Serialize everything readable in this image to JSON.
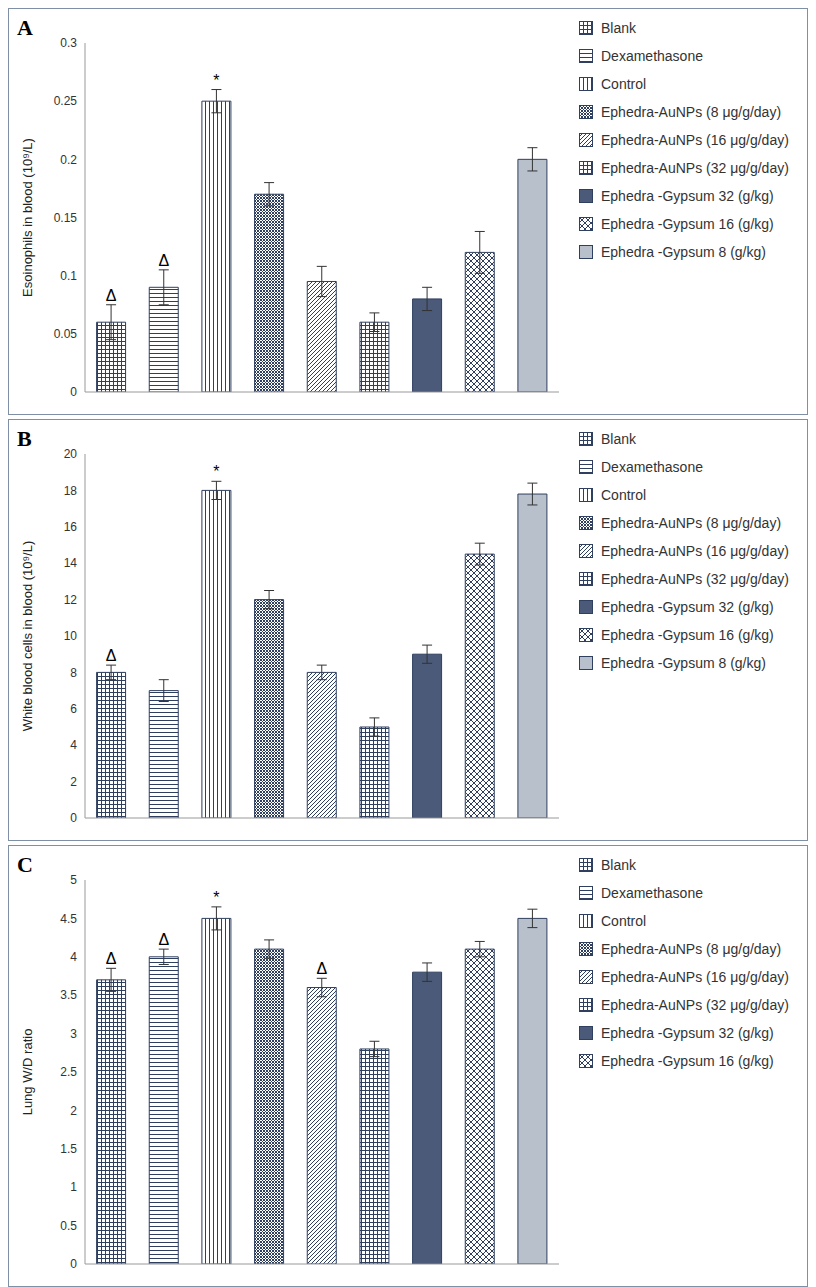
{
  "chart_data": [
    {
      "type": "bar",
      "title": "A",
      "y_label": "Esoinophils in blood (10⁹/L)",
      "categories": [
        "Blank",
        "Dexamethasone",
        "Control",
        "Ephedra-AuNPs (8 μg/g/day)",
        "Ephedra-AuNPs (16 μg/g/day)",
        "Ephedra-AuNPs (32 μg/g/day)",
        "Ephedra -Gypsum 32 (g/kg)",
        "Ephedra -Gypsum 16 (g/kg)",
        "Ephedra -Gypsum 8 (g/kg)"
      ],
      "values": [
        0.06,
        0.09,
        0.25,
        0.17,
        0.095,
        0.06,
        0.08,
        0.12,
        0.2
      ],
      "errors": [
        0.015,
        0.015,
        0.01,
        0.01,
        0.013,
        0.008,
        0.01,
        0.018,
        0.01
      ],
      "colors": [
        "#2f3f5f",
        "#2f3f5f",
        "#2f3f5f",
        "#2f3f5f",
        "#2f3f5f",
        "#2f3f5f",
        "#4a5a78",
        "#2f3f5f",
        "#b8c0cc"
      ],
      "annotations": [
        {
          "category": "Blank",
          "text": "Δ"
        },
        {
          "category": "Dexamethasone",
          "text": "Δ"
        },
        {
          "category": "Control",
          "text": "*"
        }
      ],
      "ylim": [
        0,
        0.3
      ],
      "yticks": [
        0,
        0.05,
        0.1,
        0.15,
        0.2,
        0.25,
        0.3
      ],
      "grid": false,
      "legend": "right",
      "tick_labels": "y"
    },
    {
      "type": "bar",
      "title": "B",
      "y_label": "White blood cells in blood (10⁹/L)",
      "categories": [
        "Blank",
        "Dexamethasone",
        "Control",
        "Ephedra-AuNPs (8 μg/g/day)",
        "Ephedra-AuNPs (16 μg/g/day)",
        "Ephedra-AuNPs (32 μg/g/day)",
        "Ephedra -Gypsum 32 (g/kg)",
        "Ephedra -Gypsum 16 (g/kg)",
        "Ephedra -Gypsum 8 (g/kg)"
      ],
      "values": [
        8,
        7,
        18,
        12,
        8,
        5,
        9,
        14.5,
        17.8
      ],
      "errors": [
        0.4,
        0.6,
        0.5,
        0.5,
        0.4,
        0.5,
        0.5,
        0.6,
        0.6
      ],
      "colors": [
        "#2f3f5f",
        "#2f3f5f",
        "#2f3f5f",
        "#2f3f5f",
        "#2f3f5f",
        "#2f3f5f",
        "#4a5a78",
        "#2f3f5f",
        "#b8c0cc"
      ],
      "annotations": [
        {
          "category": "Blank",
          "text": "Δ"
        },
        {
          "category": "Control",
          "text": "*"
        }
      ],
      "ylim": [
        0,
        20
      ],
      "yticks": [
        0,
        2,
        4,
        6,
        8,
        10,
        12,
        14,
        16,
        18,
        20
      ],
      "grid": false,
      "legend": "right",
      "tick_labels": "y"
    },
    {
      "type": "bar",
      "title": "C",
      "y_label": "Lung W/D ratio",
      "categories": [
        "Blank",
        "Dexamethasone",
        "Control",
        "Ephedra-AuNPs (8 μg/g/day)",
        "Ephedra-AuNPs (16 μg/g/day)",
        "Ephedra-AuNPs (32 μg/g/day)",
        "Ephedra -Gypsum 32 (g/kg)",
        "Ephedra -Gypsum 16 (g/kg)",
        null
      ],
      "values": [
        3.7,
        4.0,
        4.5,
        4.1,
        3.6,
        2.8,
        3.8,
        4.1,
        4.5
      ],
      "errors": [
        0.15,
        0.1,
        0.15,
        0.12,
        0.12,
        0.1,
        0.12,
        0.1,
        0.12
      ],
      "colors": [
        "#2f3f5f",
        "#2f3f5f",
        "#2f3f5f",
        "#2f3f5f",
        "#2f3f5f",
        "#2f3f5f",
        "#4a5a78",
        "#2f3f5f",
        "#b8c0cc"
      ],
      "annotations": [
        {
          "category": "Blank",
          "text": "Δ"
        },
        {
          "category": "Dexamethasone",
          "text": "Δ"
        },
        {
          "category": "Control",
          "text": "*"
        },
        {
          "category": "Ephedra-AuNPs (16 μg/g/day)",
          "text": "Δ"
        }
      ],
      "ylim": [
        0,
        5
      ],
      "yticks": [
        0,
        0.5,
        1,
        1.5,
        2,
        2.5,
        3,
        3.5,
        4,
        4.5,
        5
      ],
      "grid": false,
      "legend": "right",
      "tick_labels": "y"
    }
  ]
}
